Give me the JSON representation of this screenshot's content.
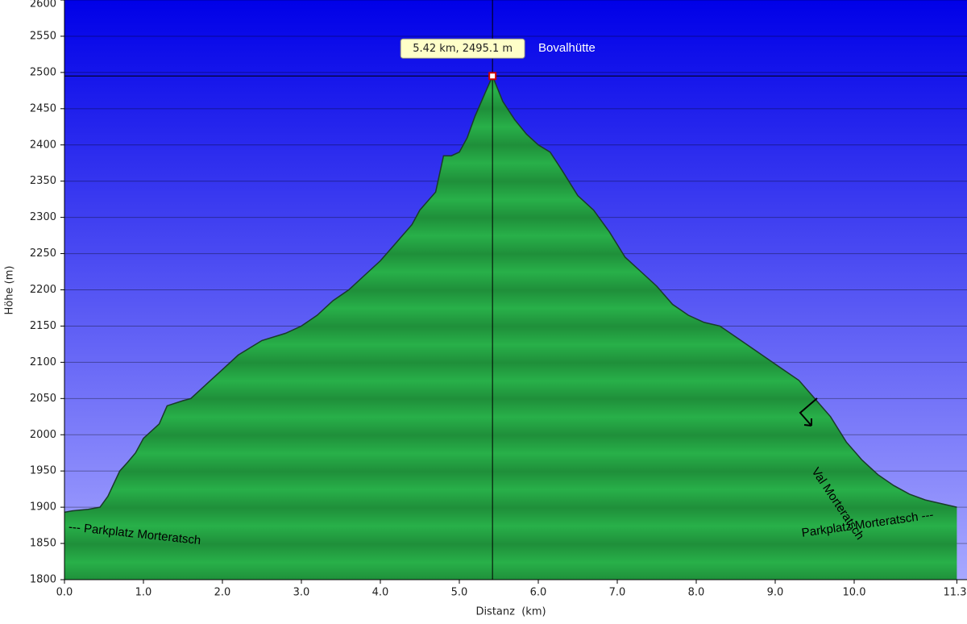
{
  "chart_data": {
    "type": "area",
    "xlabel": "Distanz  (km)",
    "ylabel": "Höhe (m)",
    "x": [
      0.0,
      0.1,
      0.3,
      0.45,
      0.55,
      0.7,
      0.8,
      0.9,
      1.0,
      1.2,
      1.3,
      1.5,
      1.6,
      1.8,
      2.0,
      2.2,
      2.5,
      2.8,
      3.0,
      3.2,
      3.4,
      3.6,
      3.8,
      4.0,
      4.2,
      4.4,
      4.5,
      4.7,
      4.8,
      4.9,
      5.0,
      5.1,
      5.2,
      5.3,
      5.42,
      5.55,
      5.7,
      5.85,
      6.0,
      6.15,
      6.3,
      6.5,
      6.7,
      6.9,
      7.1,
      7.3,
      7.5,
      7.7,
      7.9,
      8.1,
      8.3,
      8.5,
      8.7,
      8.9,
      9.1,
      9.3,
      9.5,
      9.7,
      9.9,
      10.1,
      10.3,
      10.5,
      10.7,
      10.9,
      11.1,
      11.3
    ],
    "values": [
      1893,
      1895,
      1897,
      1900,
      1915,
      1950,
      1962,
      1975,
      1995,
      2015,
      2040,
      2047,
      2050,
      2070,
      2090,
      2110,
      2130,
      2140,
      2150,
      2165,
      2185,
      2200,
      2220,
      2240,
      2265,
      2290,
      2310,
      2335,
      2385,
      2385,
      2390,
      2410,
      2440,
      2465,
      2495.1,
      2460,
      2435,
      2415,
      2400,
      2390,
      2365,
      2330,
      2310,
      2280,
      2245,
      2225,
      2205,
      2180,
      2165,
      2155,
      2150,
      2135,
      2120,
      2105,
      2090,
      2075,
      2050,
      2025,
      1990,
      1965,
      1945,
      1930,
      1918,
      1910,
      1905,
      1900
    ],
    "color": "#22a843",
    "xlim": [
      0.0,
      11.3
    ],
    "xticks": [
      {
        "value": 0,
        "label": "0.0"
      },
      {
        "value": 1,
        "label": "1.0"
      },
      {
        "value": 2,
        "label": "2.0"
      },
      {
        "value": 3,
        "label": "3.0"
      },
      {
        "value": 4,
        "label": "4.0"
      },
      {
        "value": 5,
        "label": "5.0"
      },
      {
        "value": 6,
        "label": "6.0"
      },
      {
        "value": 7,
        "label": "7.0"
      },
      {
        "value": 8,
        "label": "8.0"
      },
      {
        "value": 9,
        "label": "9.0"
      },
      {
        "value": 10,
        "label": "10.0"
      },
      11.3
    ],
    "ylim": [
      1800,
      2600
    ],
    "yticks": [
      1800,
      1850,
      1900,
      1950,
      2000,
      2050,
      2100,
      2150,
      2200,
      2250,
      2300,
      2350,
      2400,
      2450,
      2500,
      2550,
      2600
    ],
    "grid": true,
    "marker": {
      "x": 5.42,
      "y": 2495.1,
      "label": "5.42 km, 2495.1 m"
    },
    "annotations": [
      "Bovalhütte",
      "--- Parkplatz Morteratsch",
      "Parkplatz Morteratsch ---",
      "Val Morteratsch"
    ]
  }
}
